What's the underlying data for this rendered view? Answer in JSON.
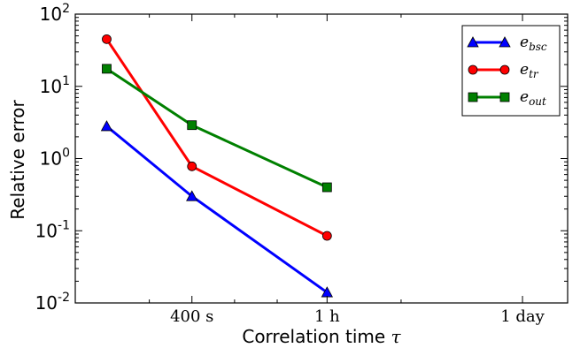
{
  "chart_data": {
    "type": "line",
    "xlabel": "Correlation time",
    "xlabel_symbol": "τ",
    "ylabel": "Relative error",
    "x_scale": "log",
    "y_scale": "log",
    "xlim_seconds": [
      60,
      180000
    ],
    "ylim": [
      0.01,
      100
    ],
    "x_ticks": [
      {
        "value_seconds": 400,
        "label": "400 s"
      },
      {
        "value_seconds": 3600,
        "label": "1 h"
      },
      {
        "value_seconds": 86400,
        "label": "1 day"
      }
    ],
    "y_ticks": [
      {
        "value": 0.01,
        "base": "10",
        "exp": "-2"
      },
      {
        "value": 0.1,
        "base": "10",
        "exp": "-1"
      },
      {
        "value": 1,
        "base": "10",
        "exp": "0"
      },
      {
        "value": 10,
        "base": "10",
        "exp": "1"
      },
      {
        "value": 100,
        "base": "10",
        "exp": "2"
      }
    ],
    "x_minor_ticks_seconds": [
      200,
      800,
      1600,
      12000
    ],
    "series": [
      {
        "name": "bsc",
        "base": "e",
        "color": "#0000ff",
        "marker": "triangle",
        "x_seconds": [
          100,
          400,
          3600
        ],
        "values": [
          2.8,
          0.3,
          0.014
        ]
      },
      {
        "name": "tr",
        "base": "e",
        "color": "#ff0000",
        "marker": "circle",
        "x_seconds": [
          100,
          400,
          3600
        ],
        "values": [
          45,
          0.78,
          0.085
        ]
      },
      {
        "name": "out",
        "base": "e",
        "color": "#008000",
        "marker": "square",
        "x_seconds": [
          100,
          400,
          3600
        ],
        "values": [
          17.5,
          2.9,
          0.4
        ]
      }
    ],
    "legend_position": "top-right",
    "grid": false
  }
}
